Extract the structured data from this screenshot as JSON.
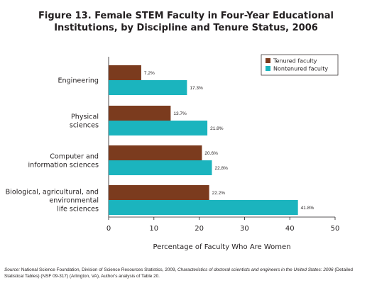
{
  "chart_data": {
    "type": "bar",
    "orientation": "horizontal",
    "title_line1": "Figure 13. Female STEM Faculty in Four-Year Educational",
    "title_line2": "Institutions, by Discipline and Tenure Status, 2006",
    "xlabel": "Percentage of Faculty Who Are Women",
    "ylabel": "",
    "xlim": [
      0,
      50
    ],
    "xticks": [
      "0",
      "10",
      "20",
      "30",
      "40",
      "50"
    ],
    "grid": false,
    "legend_position": "top-right",
    "categories": [
      [
        "Engineering"
      ],
      [
        "Physical",
        "sciences"
      ],
      [
        "Computer and",
        "information sciences"
      ],
      [
        "Biological, agricultural, and",
        "environmental",
        "life sciences"
      ]
    ],
    "series": [
      {
        "name": "Tenured faculty",
        "color": "#7b3b1e",
        "values": [
          7.2,
          13.7,
          20.6,
          22.2
        ],
        "labels": [
          "7.2%",
          "13.7%",
          "20.6%",
          "22.2%"
        ]
      },
      {
        "name": "Nontenured faculty",
        "color": "#1bb4be",
        "values": [
          17.3,
          21.8,
          22.8,
          41.8
        ],
        "labels": [
          "17.3%",
          "21.8%",
          "22.8%",
          "41.8%"
        ]
      }
    ]
  },
  "source": {
    "lead": "Source:",
    "part1": " National Science Foundation, Division of Science Resources Statistics, 2009, ",
    "italic": "Characteristics of doctoral scientists and engineers in the United States: 2006",
    "part2": " (Detailed Statistical Tables) (NSF 09-317) (Arlington, VA), Author's analysis of Table 20."
  }
}
